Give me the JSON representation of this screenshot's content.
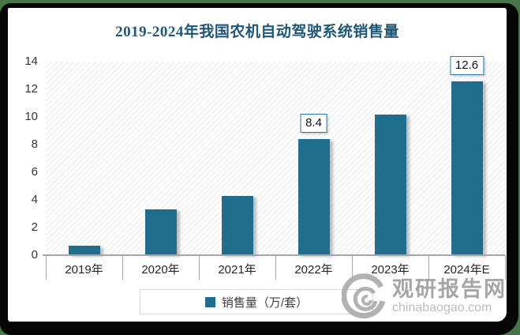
{
  "page": {
    "watermark": {
      "brand": "观研报告网",
      "domain": "chinabaogao.com"
    },
    "colors": {
      "bar": "#1f6e8e",
      "title": "#1f5876",
      "frame_green": "#457549",
      "frame_black": "#060606",
      "label_box_border": "#2a7aa1",
      "axis_gray": "#a6a6a6"
    }
  },
  "chart_data": {
    "type": "bar",
    "title": "2019-2024年我国农机自动驾驶系统销售量",
    "categories": [
      "2019年",
      "2020年",
      "2021年",
      "2022年",
      "2023年",
      "2024年E"
    ],
    "series": [
      {
        "name": "销售量（万/套）",
        "values": [
          0.66,
          3.3,
          4.3,
          8.4,
          10.2,
          12.6
        ]
      }
    ],
    "data_labels": [
      null,
      null,
      null,
      "8.4",
      null,
      "12.6"
    ],
    "legend": {
      "position": "bottom",
      "entries": [
        "销售量（万/套）"
      ]
    },
    "xlabel": "",
    "ylabel": "",
    "ylim": [
      0,
      14
    ],
    "yticks": [
      0,
      2,
      4,
      6,
      8,
      10,
      12,
      14
    ],
    "grid": false,
    "plot_background": "diagonal-hatch"
  }
}
